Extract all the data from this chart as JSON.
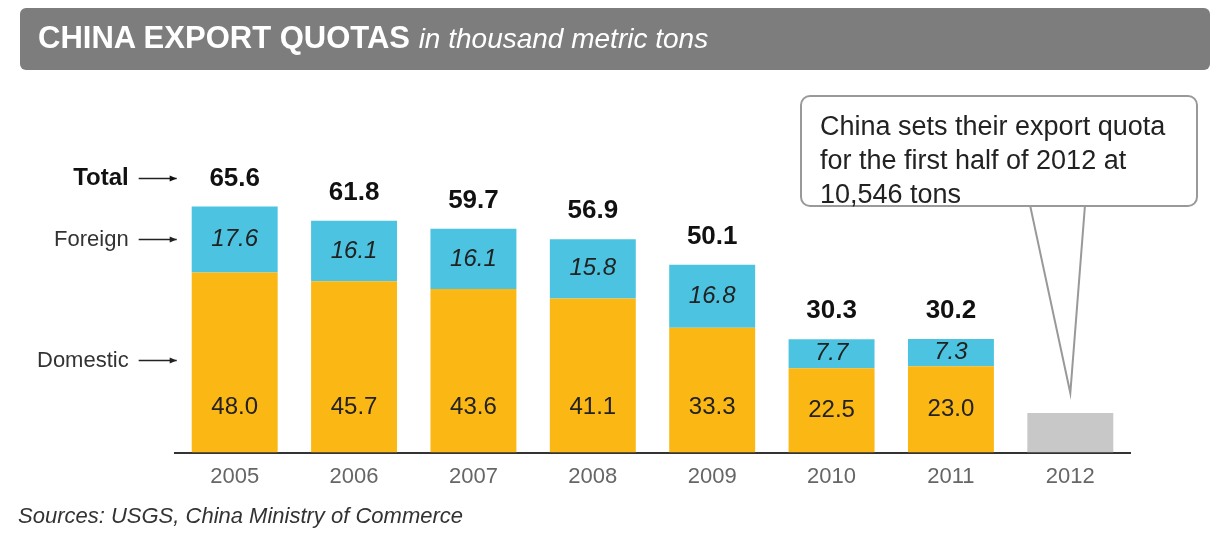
{
  "chart_data": {
    "type": "bar",
    "title": "CHINA EXPORT QUOTAS",
    "subtitle": "in thousand metric tons",
    "stacked": true,
    "categories": [
      "2005",
      "2006",
      "2007",
      "2008",
      "2009",
      "2010",
      "2011",
      "2012"
    ],
    "series": [
      {
        "name": "Domestic",
        "color": "#fbb714",
        "values": [
          48.0,
          45.7,
          43.6,
          41.1,
          33.3,
          22.5,
          23.0,
          null
        ],
        "value_labels": [
          "48.0",
          "45.7",
          "43.6",
          "41.1",
          "33.3",
          "22.5",
          "23.0",
          null
        ]
      },
      {
        "name": "Foreign",
        "color": "#4cc3e0",
        "values": [
          17.6,
          16.1,
          16.1,
          15.8,
          16.8,
          7.7,
          7.3,
          null
        ],
        "value_labels": [
          "17.6",
          "16.1",
          "16.1",
          "15.8",
          "16.8",
          "7.7",
          "7.3",
          null
        ]
      },
      {
        "color": "#c8c8c8",
        "values": [
          null,
          null,
          null,
          null,
          null,
          null,
          null,
          10.546
        ]
      }
    ],
    "totals": [
      "65.6",
      "61.8",
      "59.7",
      "56.9",
      "50.1",
      "30.3",
      "30.2",
      null
    ],
    "annotations": [
      "Total",
      "China sets their export quota for the first half of 2012 at 10,546 tons",
      "Sources: USGS, China Ministry of Commerce"
    ]
  }
}
